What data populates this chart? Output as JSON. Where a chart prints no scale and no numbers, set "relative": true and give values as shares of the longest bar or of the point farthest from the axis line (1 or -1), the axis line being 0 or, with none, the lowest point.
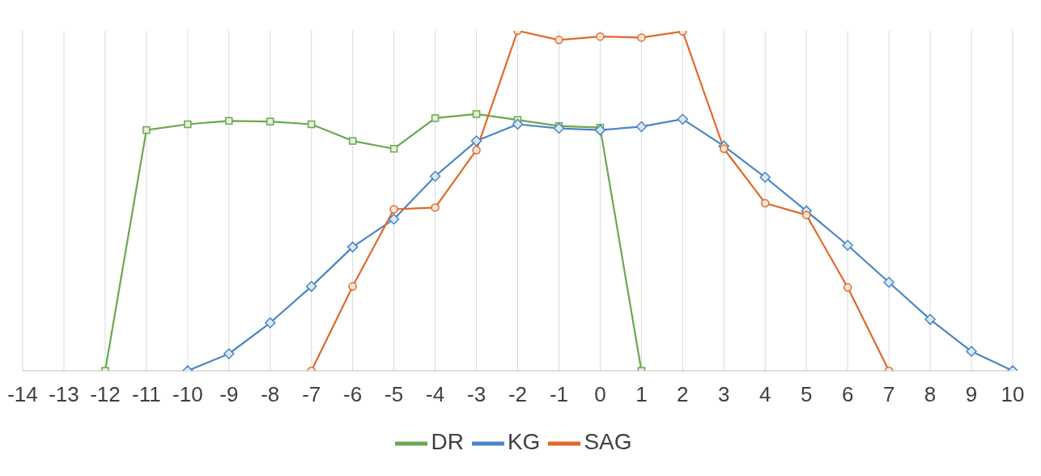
{
  "chart_data": {
    "type": "line",
    "relative": true,
    "categories": [
      "-14",
      "-13",
      "-12",
      "-11",
      "-10",
      "-9",
      "-8",
      "-7",
      "-6",
      "-5",
      "-4",
      "-3",
      "-2",
      "-1",
      "0",
      "1",
      "2",
      "3",
      "4",
      "5",
      "6",
      "7",
      "8",
      "9",
      "10"
    ],
    "series": [
      {
        "name": "DR",
        "color": "#6aa84f",
        "marker": "square",
        "values": [
          null,
          null,
          0,
          0.708,
          0.725,
          0.735,
          0.733,
          0.725,
          0.676,
          0.653,
          0.743,
          0.755,
          0.738,
          0.72,
          0.715,
          0,
          null,
          null,
          null,
          null,
          null,
          null,
          null,
          null,
          null
        ]
      },
      {
        "name": "KG",
        "color": "#4a86c5",
        "marker": "diamond",
        "values": [
          null,
          null,
          null,
          null,
          0,
          0.05,
          0.141,
          0.248,
          0.364,
          0.446,
          0.572,
          0.676,
          0.725,
          0.713,
          0.708,
          0.718,
          0.74,
          0.661,
          0.569,
          0.47,
          0.369,
          0.26,
          0.151,
          0.057,
          0
        ]
      },
      {
        "name": "SAG",
        "color": "#e0692a",
        "marker": "circle",
        "values": [
          null,
          null,
          null,
          null,
          null,
          null,
          null,
          0,
          0.248,
          0.475,
          0.48,
          0.649,
          1,
          0.973,
          0.983,
          0.98,
          0.998,
          0.653,
          0.493,
          0.458,
          0.245,
          0,
          null,
          null,
          null
        ]
      }
    ],
    "grid": "x",
    "legend": "bottom",
    "line_style": "solid"
  }
}
